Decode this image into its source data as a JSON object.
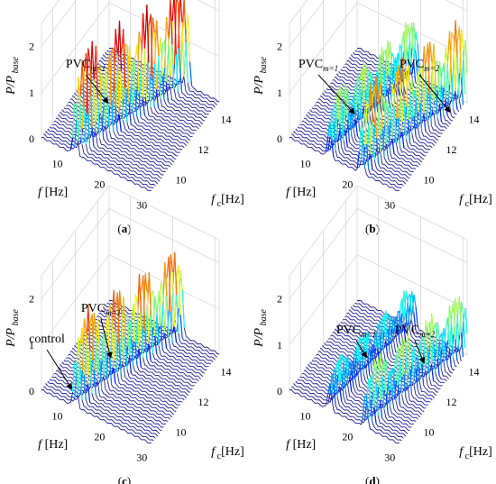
{
  "chart_data": [
    {
      "panel": "(a)",
      "panel_letter": "a",
      "type": "waterfall",
      "xlabel_var": "f",
      "xlabel_unit": "[Hz]",
      "ylabel_var": "f",
      "ylabel_sub": "c",
      "ylabel_unit": "[Hz]",
      "zlabel": "P/P",
      "zlabel_sub": "base",
      "x_ticks": [
        "10",
        "20",
        "30"
      ],
      "xlim": [
        5,
        31
      ],
      "y_ticks": [
        "10",
        "12",
        "14"
      ],
      "ylim": [
        9,
        15
      ],
      "z_ticks": [
        "0",
        "1",
        "2"
      ],
      "zlim": [
        0,
        2.5
      ],
      "peak_ridges": [
        {
          "x_start": 13.0,
          "x_end": 23.5,
          "height": 2.3,
          "colored_height": 1.0
        }
      ],
      "annotations": [
        {
          "text": "PVC",
          "sub": "m=1"
        }
      ]
    },
    {
      "panel": "(b)",
      "panel_letter": "b",
      "type": "waterfall",
      "xlabel_var": "f",
      "xlabel_unit": "[Hz]",
      "ylabel_var": "f",
      "ylabel_sub": "c",
      "ylabel_unit": "[Hz]",
      "zlabel": "P/P",
      "zlabel_sub": "base",
      "x_ticks": [
        "10",
        "20",
        "30"
      ],
      "xlim": [
        5,
        31
      ],
      "y_ticks": [
        "10",
        "12",
        "14"
      ],
      "ylim": [
        9,
        15
      ],
      "z_ticks": [
        "0",
        "1",
        "2"
      ],
      "zlim": [
        0,
        2.5
      ],
      "peak_ridges": [
        {
          "x_start": 14.5,
          "x_end": 19.0,
          "height": 1.4,
          "colored_height": 1.0
        },
        {
          "x_start": 22.0,
          "x_end": 30.5,
          "height": 1.9,
          "colored_height": 1.0
        }
      ],
      "annotations": [
        {
          "text": "PVC",
          "sub": "m=1"
        },
        {
          "text": "PVC",
          "sub": "m=2"
        }
      ]
    },
    {
      "panel": "(c)",
      "panel_letter": "c",
      "type": "waterfall",
      "xlabel_var": "f",
      "xlabel_unit": "[Hz]",
      "ylabel_var": "f",
      "ylabel_sub": "c",
      "ylabel_unit": "[Hz]",
      "zlabel": "P/P",
      "zlabel_sub": "base",
      "x_ticks": [
        "10",
        "20",
        "30"
      ],
      "xlim": [
        5,
        31
      ],
      "y_ticks": [
        "10",
        "12",
        "14"
      ],
      "ylim": [
        9,
        15
      ],
      "z_ticks": [
        "0",
        "1",
        "2"
      ],
      "zlim": [
        0,
        2.5
      ],
      "peak_ridges": [
        {
          "x_start": 13.0,
          "x_end": 22.0,
          "height": 2.0,
          "colored_height": 1.0
        }
      ],
      "annotations": [
        {
          "text": "PVC",
          "sub": "m=1"
        },
        {
          "text": "control",
          "sub": ""
        }
      ]
    },
    {
      "panel": "(d)",
      "panel_letter": "d",
      "type": "waterfall",
      "xlabel_var": "f",
      "xlabel_unit": "[Hz]",
      "ylabel_var": "f",
      "ylabel_sub": "c",
      "ylabel_unit": "[Hz]",
      "zlabel": "P/P",
      "zlabel_sub": "base",
      "x_ticks": [
        "10",
        "20",
        "30"
      ],
      "xlim": [
        5,
        31
      ],
      "y_ticks": [
        "10",
        "12",
        "14"
      ],
      "ylim": [
        9,
        15
      ],
      "z_ticks": [
        "0",
        "1",
        "2"
      ],
      "zlim": [
        0,
        2.5
      ],
      "peak_ridges": [
        {
          "x_start": 14.5,
          "x_end": 18.5,
          "height": 1.0,
          "colored_height": 0.9
        },
        {
          "x_start": 23.0,
          "x_end": 30.5,
          "height": 1.4,
          "colored_height": 0.9
        }
      ],
      "annotations": [
        {
          "text": "PVC",
          "sub": "m=1"
        },
        {
          "text": "PVC",
          "sub": "m=2"
        }
      ]
    }
  ]
}
